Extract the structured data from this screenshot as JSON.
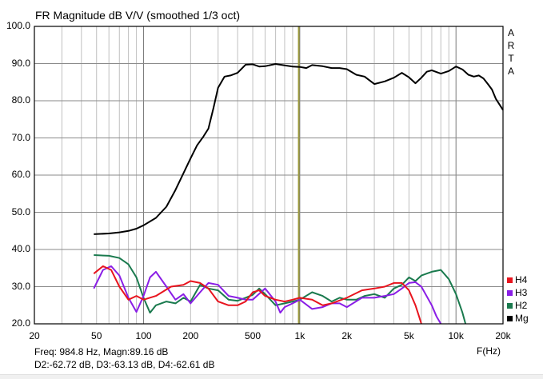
{
  "window": {
    "app": "ARTA",
    "brand_letters": [
      "A",
      "R",
      "T",
      "A"
    ]
  },
  "chart": {
    "title": "FR Magnitude dB V/V (smoothed 1/3 oct)",
    "y_ticks": [
      "100.0",
      "90.0",
      "80.0",
      "70.0",
      "60.0",
      "50.0",
      "40.0",
      "30.0",
      "20.0"
    ],
    "x_ticks": [
      "20",
      "50",
      "100",
      "200",
      "500",
      "1k",
      "2k",
      "5k",
      "10k",
      "20k"
    ],
    "x_unit_label": "F(Hz)",
    "legend": [
      {
        "label": "H4",
        "color": "#e8141e"
      },
      {
        "label": "H3",
        "color": "#8a1ee6"
      },
      {
        "label": "H2",
        "color": "#1a7a4e"
      },
      {
        "label": "Mg",
        "color": "#000000"
      }
    ],
    "cursor": {
      "freq_hz": 984.8,
      "color": "#9c9a3c"
    },
    "readout": {
      "line1": "Freq: 984.8 Hz, Magn:89.16 dB",
      "line2": "D2:-62.72 dB, D3:-63.13 dB, D4:-62.61 dB"
    }
  },
  "chart_data": {
    "type": "line",
    "title": "FR Magnitude dB V/V (smoothed 1/3 oct)",
    "xlabel": "F(Hz)",
    "ylabel": "dB",
    "xscale": "log",
    "xlim": [
      20,
      20000
    ],
    "ylim": [
      20,
      100
    ],
    "grid": true,
    "legend_position": "right-bottom",
    "x_tick_labels": [
      "20",
      "50",
      "100",
      "200",
      "500",
      "1k",
      "2k",
      "5k",
      "10k",
      "20k"
    ],
    "y_tick_labels": [
      "20.0",
      "30.0",
      "40.0",
      "50.0",
      "60.0",
      "70.0",
      "80.0",
      "90.0",
      "100.0"
    ],
    "annotations": [
      "ARTA",
      "Freq: 984.8 Hz, Magn:89.16 dB",
      "D2:-62.72 dB, D3:-63.13 dB, D4:-62.61 dB"
    ],
    "cursor_x": 984.8,
    "series": [
      {
        "name": "Mg",
        "color": "#000000",
        "x": [
          48,
          60,
          70,
          80,
          90,
          100,
          120,
          140,
          160,
          180,
          200,
          220,
          240,
          260,
          280,
          300,
          330,
          360,
          400,
          450,
          500,
          550,
          600,
          700,
          800,
          900,
          1000,
          1100,
          1200,
          1400,
          1600,
          1800,
          2000,
          2300,
          2600,
          3000,
          3500,
          4000,
          4500,
          5000,
          5500,
          6000,
          6500,
          7000,
          8000,
          9000,
          10000,
          11000,
          12000,
          13000,
          14000,
          15000,
          16000,
          17000,
          18000,
          19000,
          20000
        ],
        "values": [
          44.1,
          44.3,
          44.6,
          45.0,
          45.6,
          46.5,
          48.5,
          51.5,
          56.0,
          60.5,
          64.5,
          68.0,
          70.2,
          72.5,
          78.0,
          83.5,
          86.5,
          86.8,
          87.5,
          89.7,
          89.8,
          89.2,
          89.3,
          89.9,
          89.5,
          89.2,
          89.1,
          88.8,
          89.6,
          89.3,
          88.8,
          88.8,
          88.5,
          87.0,
          86.5,
          84.5,
          85.2,
          86.2,
          87.5,
          86.3,
          84.7,
          86.2,
          87.8,
          88.2,
          87.3,
          88.0,
          89.2,
          88.4,
          87.0,
          86.5,
          86.8,
          86.0,
          84.5,
          83.0,
          80.5,
          79.0,
          77.5
        ]
      },
      {
        "name": "H2",
        "color": "#1a7a4e",
        "x": [
          48,
          60,
          70,
          80,
          90,
          100,
          110,
          120,
          140,
          160,
          180,
          200,
          230,
          260,
          300,
          350,
          400,
          450,
          500,
          550,
          600,
          700,
          800,
          900,
          1000,
          1200,
          1400,
          1600,
          1800,
          2000,
          2300,
          2600,
          3000,
          3500,
          4000,
          4500,
          5000,
          5500,
          6000,
          7000,
          8000,
          9000,
          10000,
          11000,
          11500
        ],
        "values": [
          38.5,
          38.3,
          37.7,
          36.0,
          32.5,
          27.0,
          23.0,
          25.0,
          26.0,
          25.5,
          27.0,
          26.0,
          30.5,
          29.5,
          29.0,
          26.5,
          26.2,
          27.0,
          27.8,
          29.5,
          28.0,
          25.0,
          25.5,
          26.0,
          26.5,
          28.5,
          27.5,
          26.0,
          27.0,
          26.5,
          26.5,
          27.5,
          28.0,
          27.0,
          29.5,
          30.5,
          32.5,
          31.5,
          33.0,
          34.0,
          34.5,
          32.0,
          28.0,
          23.0,
          20.0
        ]
      },
      {
        "name": "H3",
        "color": "#8a1ee6",
        "x": [
          48,
          55,
          62,
          70,
          80,
          90,
          100,
          110,
          120,
          140,
          160,
          180,
          200,
          230,
          260,
          300,
          350,
          400,
          450,
          500,
          600,
          700,
          750,
          800,
          900,
          1000,
          1200,
          1400,
          1600,
          1800,
          2000,
          2500,
          3000,
          3500,
          4000,
          4500,
          5000,
          5500,
          6000,
          7000,
          7500,
          8000
        ],
        "values": [
          29.5,
          34.5,
          35.5,
          33.0,
          27.0,
          23.2,
          27.5,
          32.5,
          34.0,
          30.0,
          26.5,
          28.0,
          25.5,
          28.5,
          31.0,
          30.5,
          27.5,
          27.0,
          26.5,
          26.5,
          29.5,
          26.0,
          23.0,
          24.5,
          25.5,
          26.5,
          24.0,
          24.5,
          25.5,
          25.5,
          24.5,
          27.0,
          27.0,
          27.5,
          28.0,
          29.5,
          31.0,
          31.2,
          30.0,
          25.0,
          22.0,
          20.0
        ]
      },
      {
        "name": "H4",
        "color": "#e8141e",
        "x": [
          48,
          55,
          62,
          70,
          80,
          90,
          100,
          120,
          150,
          180,
          200,
          230,
          260,
          300,
          350,
          400,
          450,
          500,
          550,
          600,
          700,
          800,
          900,
          1000,
          1200,
          1400,
          1600,
          2000,
          2500,
          3000,
          3500,
          4000,
          4500,
          5000,
          5500,
          5800,
          6000
        ],
        "values": [
          33.5,
          35.5,
          34.5,
          30.0,
          26.5,
          27.5,
          26.5,
          27.5,
          30.0,
          30.5,
          31.5,
          31.0,
          29.5,
          26.0,
          25.0,
          25.0,
          26.0,
          28.5,
          29.0,
          27.5,
          26.5,
          26.0,
          26.5,
          27.0,
          26.5,
          25.0,
          25.5,
          27.0,
          29.0,
          29.5,
          30.0,
          31.0,
          31.0,
          29.0,
          25.0,
          22.0,
          20.0
        ]
      }
    ]
  }
}
